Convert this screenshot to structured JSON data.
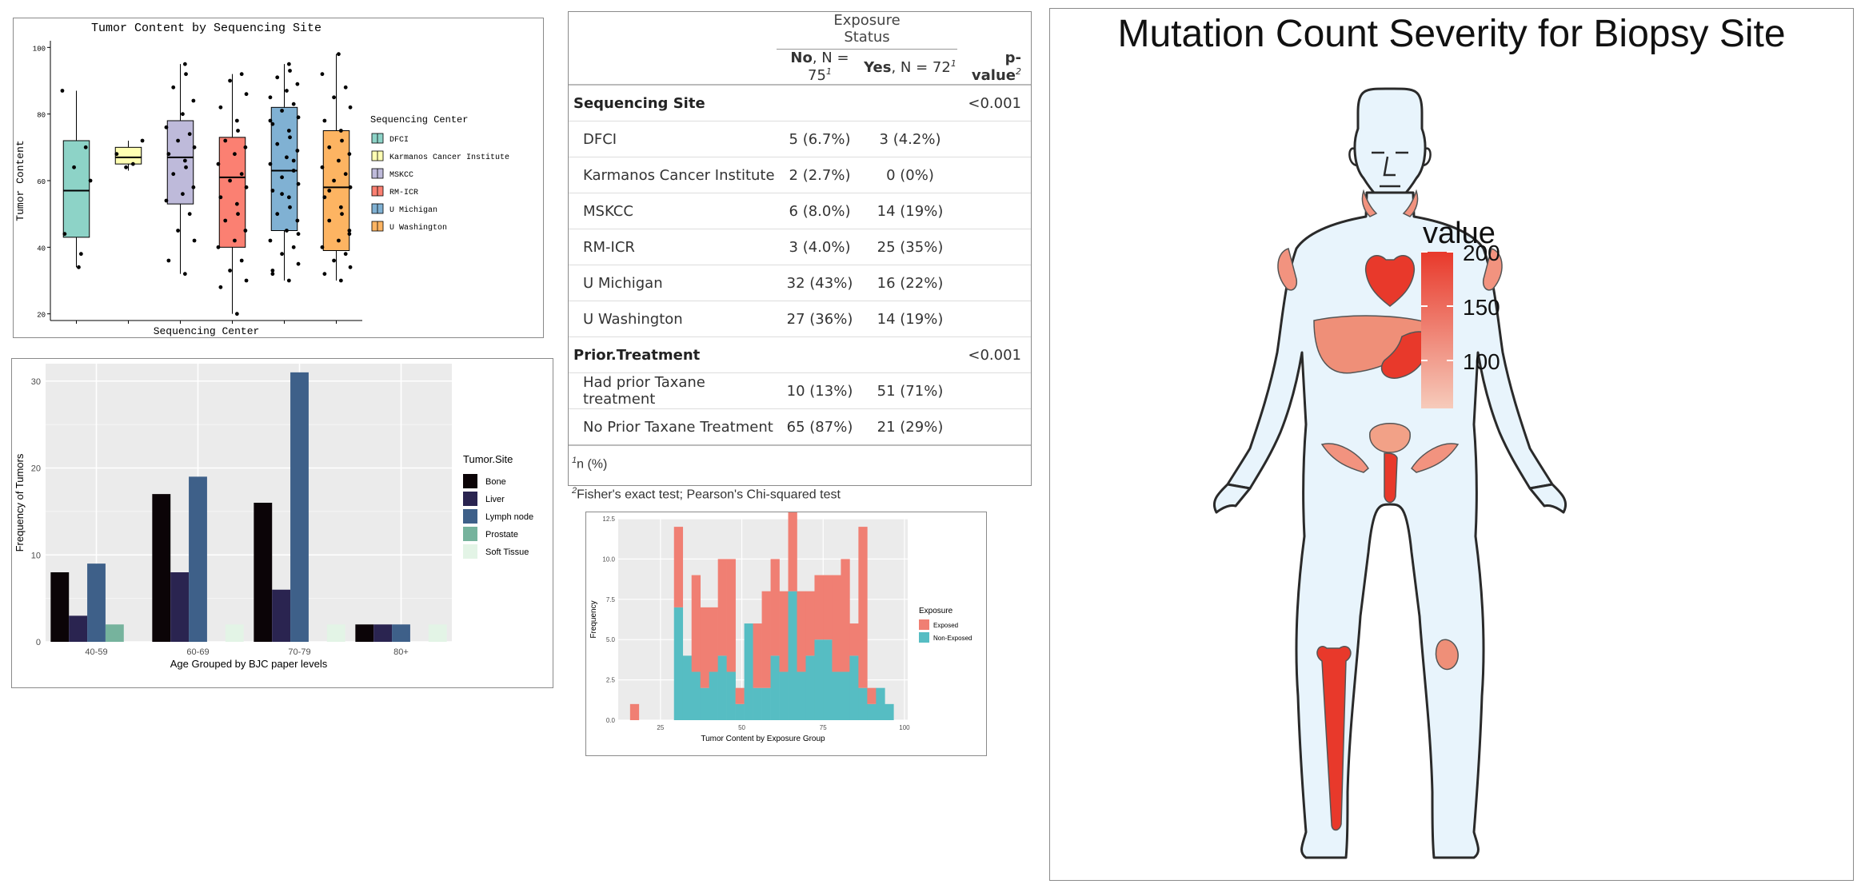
{
  "boxplot": {
    "title": "Tumor Content by Sequencing Site",
    "xlabel": "Sequencing Center",
    "ylabel": "Tumor Content",
    "yticks": [
      "20",
      "40",
      "60",
      "80",
      "100"
    ],
    "legend_title": "Sequencing Center"
  },
  "barchart": {
    "xlabel": "Age Grouped by BJC paper levels",
    "ylabel": "Frequency of Tumors",
    "legend_title": "Tumor.Site",
    "yticks": [
      "0",
      "10",
      "20",
      "30"
    ]
  },
  "table": {
    "header_group": "Exposure Status",
    "col_no": "No",
    "col_no_n": ", N = 75",
    "col_yes": "Yes",
    "col_yes_n": ", N = 72",
    "col_p": "p-value",
    "sup1": "1",
    "sup2": "2",
    "group1": "Sequencing Site",
    "group1_p": "<0.001",
    "group2": "Prior.Treatment",
    "group2_p": "<0.001",
    "rows1": [
      {
        "label": "DFCI",
        "no": "5 (6.7%)",
        "yes": "3 (4.2%)"
      },
      {
        "label": "Karmanos Cancer Institute",
        "no": "2 (2.7%)",
        "yes": "0 (0%)"
      },
      {
        "label": "MSKCC",
        "no": "6 (8.0%)",
        "yes": "14 (19%)"
      },
      {
        "label": "RM-ICR",
        "no": "3 (4.0%)",
        "yes": "25 (35%)"
      },
      {
        "label": "U Michigan",
        "no": "32 (43%)",
        "yes": "16 (22%)"
      },
      {
        "label": "U Washington",
        "no": "27 (36%)",
        "yes": "14 (19%)"
      }
    ],
    "rows2": [
      {
        "label": "Had prior Taxane treatment",
        "no": "10 (13%)",
        "yes": "51 (71%)"
      },
      {
        "label": "No Prior Taxane Treatment",
        "no": "65 (87%)",
        "yes": "21 (29%)"
      }
    ],
    "foot1": "n (%)",
    "foot2": "Fisher's exact test; Pearson's Chi-squared test"
  },
  "histogram": {
    "xlabel": "Tumor Content by Exposure Group",
    "ylabel": "Frequency",
    "legend_title": "Exposure",
    "yticks": [
      "0.0",
      "2.5",
      "5.0",
      "7.5",
      "10.0",
      "12.5"
    ],
    "xticks": [
      "25",
      "50",
      "75",
      "100"
    ]
  },
  "bodymap": {
    "title": "Mutation Count Severity for Biopsy Site",
    "legend_title": "value",
    "legend_ticks": [
      "200",
      "150",
      "100"
    ],
    "colors": {
      "low": "#f6cbbb",
      "high": "#e8392b",
      "skin": "#e8f4fc",
      "outline": "#2a2a2a"
    }
  },
  "chart_data": [
    {
      "type": "box",
      "title": "Tumor Content by Sequencing Site",
      "xlabel": "Sequencing Center",
      "ylabel": "Tumor Content",
      "ylim": [
        18,
        102
      ],
      "legend_placement": "right",
      "grid": false,
      "categories": [
        "DFCI",
        "Karmanos Cancer Institute",
        "MSKCC",
        "RM-ICR",
        "U Michigan",
        "U Washington"
      ],
      "colors": [
        "#8dd3c7",
        "#ffffb3",
        "#bebada",
        "#fb8072",
        "#80b1d3",
        "#fdb462"
      ],
      "boxes": [
        {
          "min": 34,
          "q1": 43,
          "median": 57,
          "q3": 72,
          "max": 87
        },
        {
          "min": 63,
          "q1": 65,
          "median": 67,
          "q3": 70,
          "max": 72
        },
        {
          "min": 32,
          "q1": 53,
          "median": 67,
          "q3": 78,
          "max": 95
        },
        {
          "min": 20,
          "q1": 40,
          "median": 61,
          "q3": 73,
          "max": 92
        },
        {
          "min": 30,
          "q1": 45,
          "median": 63,
          "q3": 82,
          "max": 95
        },
        {
          "min": 30,
          "q1": 39,
          "median": 58,
          "q3": 75,
          "max": 98
        }
      ],
      "points": [
        [
          38,
          44,
          60,
          64,
          70,
          87,
          34
        ],
        [
          65,
          68,
          72,
          64
        ],
        [
          32,
          36,
          42,
          45,
          50,
          54,
          56,
          58,
          62,
          64,
          66,
          68,
          70,
          72,
          74,
          76,
          80,
          84,
          88,
          92,
          95
        ],
        [
          20,
          28,
          30,
          33,
          36,
          40,
          42,
          45,
          48,
          50,
          53,
          55,
          58,
          60,
          62,
          65,
          68,
          70,
          72,
          75,
          78,
          82,
          86,
          90,
          92
        ],
        [
          30,
          32,
          35,
          38,
          40,
          42,
          45,
          48,
          50,
          52,
          55,
          57,
          59,
          61,
          63,
          65,
          67,
          69,
          71,
          73,
          75,
          77,
          79,
          81,
          83,
          85,
          87,
          89,
          91,
          93,
          95,
          33,
          44,
          56,
          66,
          78
        ],
        [
          30,
          32,
          34,
          36,
          38,
          40,
          42,
          45,
          48,
          50,
          52,
          55,
          58,
          60,
          62,
          64,
          66,
          68,
          70,
          72,
          75,
          78,
          82,
          85,
          88,
          92,
          98,
          44,
          57
        ]
      ]
    },
    {
      "type": "bar",
      "xlabel": "Age Grouped by BJC paper levels",
      "ylabel": "Frequency of Tumors",
      "ylim": [
        0,
        32
      ],
      "grid": true,
      "legend_placement": "right",
      "categories": [
        "40-59",
        "60-69",
        "70-79",
        "80+"
      ],
      "series": [
        {
          "name": "Bone",
          "color": "#0b0407",
          "values": [
            8,
            17,
            16,
            2
          ]
        },
        {
          "name": "Liver",
          "color": "#2a2450",
          "values": [
            3,
            8,
            6,
            2
          ]
        },
        {
          "name": "Lymph node",
          "color": "#3e6089",
          "values": [
            9,
            19,
            31,
            2
          ]
        },
        {
          "name": "Prostate",
          "color": "#76b39d",
          "values": [
            2,
            0,
            0,
            0
          ]
        },
        {
          "name": "Soft Tissue",
          "color": "#e3f4e6",
          "values": [
            0,
            2,
            2,
            2
          ]
        }
      ]
    },
    {
      "type": "table",
      "header": [
        "",
        "No, N = 75",
        "Yes, N = 72",
        "p-value"
      ],
      "rows": [
        [
          "Sequencing Site",
          "",
          "",
          "<0.001"
        ],
        [
          "DFCI",
          "5 (6.7%)",
          "3 (4.2%)",
          ""
        ],
        [
          "Karmanos Cancer Institute",
          "2 (2.7%)",
          "0 (0%)",
          ""
        ],
        [
          "MSKCC",
          "6 (8.0%)",
          "14 (19%)",
          ""
        ],
        [
          "RM-ICR",
          "3 (4.0%)",
          "25 (35%)",
          ""
        ],
        [
          "U Michigan",
          "32 (43%)",
          "16 (22%)",
          ""
        ],
        [
          "U Washington",
          "27 (36%)",
          "14 (19%)",
          ""
        ],
        [
          "Prior.Treatment",
          "",
          "",
          "<0.001"
        ],
        [
          "Had prior Taxane treatment",
          "10 (13%)",
          "51 (71%)",
          ""
        ],
        [
          "No Prior Taxane Treatment",
          "65 (87%)",
          "21 (29%)",
          ""
        ]
      ]
    },
    {
      "type": "bar",
      "stacked": true,
      "xlabel": "Tumor Content by Exposure Group",
      "ylabel": "Frequency",
      "xlim": [
        12,
        101
      ],
      "ylim": [
        0,
        12.5
      ],
      "grid": true,
      "legend_placement": "right",
      "bin_width": 2.7,
      "x": [
        17,
        19.7,
        22.4,
        25.1,
        27.8,
        30.5,
        33.2,
        35.9,
        38.6,
        41.3,
        44,
        46.7,
        49.4,
        52.1,
        54.8,
        57.5,
        60.2,
        62.9,
        65.6,
        68.3,
        71,
        73.7,
        76.4,
        79.1,
        81.8,
        84.5,
        87.2,
        89.9,
        92.6,
        95.3
      ],
      "series": [
        {
          "name": "Exposed",
          "color": "#f07f73",
          "values": [
            1,
            0,
            0,
            0,
            0,
            5,
            0,
            6,
            5,
            4,
            6,
            7,
            1,
            0,
            4,
            6,
            6,
            5,
            5,
            5,
            4,
            4,
            4,
            6,
            7,
            2,
            10,
            1,
            0,
            0
          ]
        },
        {
          "name": "Non-Exposed",
          "color": "#56bdc3",
          "values": [
            0,
            0,
            0,
            0,
            0,
            7,
            4,
            3,
            2,
            3,
            4,
            3,
            1,
            6,
            2,
            2,
            4,
            3,
            8,
            3,
            4,
            5,
            5,
            3,
            3,
            4,
            2,
            1,
            2,
            1
          ]
        }
      ]
    },
    {
      "type": "heatmap",
      "title": "Mutation Count Severity for Biopsy Site",
      "legend_title": "value",
      "scale": [
        80,
        210
      ],
      "legend_ticks": [
        200,
        150,
        100
      ]
    }
  ]
}
